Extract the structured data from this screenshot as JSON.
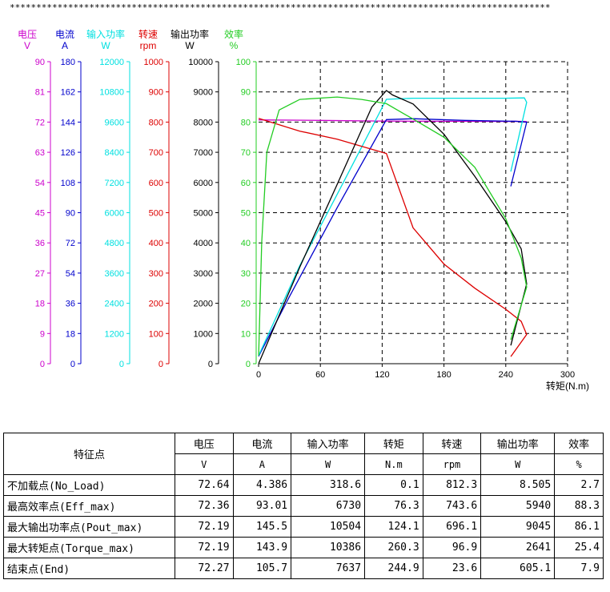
{
  "top_rule": "******************************************************************************************************",
  "chart_data": {
    "type": "line",
    "xlabel": "转矩(N.m)",
    "x_ticks": [
      "0",
      "60",
      "120",
      "180",
      "240",
      "300"
    ],
    "xlim": [
      0,
      300
    ],
    "grid": true,
    "axes": [
      {
        "name": "电压",
        "unit": "V",
        "color": "#cc00cc",
        "ticks": [
          "90",
          "81",
          "72",
          "63",
          "54",
          "45",
          "36",
          "27",
          "18",
          "9",
          "0"
        ],
        "max": 90
      },
      {
        "name": "电流",
        "unit": "A",
        "color": "#0000cc",
        "ticks": [
          "180",
          "162",
          "144",
          "126",
          "108",
          "90",
          "72",
          "54",
          "36",
          "18",
          "0"
        ],
        "max": 180
      },
      {
        "name": "输入功率",
        "unit": "W",
        "color": "#00e0e0",
        "ticks": [
          "12000",
          "10800",
          "9600",
          "8400",
          "7200",
          "6000",
          "4800",
          "3600",
          "2400",
          "1200",
          "0"
        ],
        "max": 12000
      },
      {
        "name": "转速",
        "unit": "rpm",
        "color": "#dd0000",
        "ticks": [
          "1000",
          "900",
          "800",
          "700",
          "600",
          "500",
          "400",
          "300",
          "200",
          "100",
          "0"
        ],
        "max": 1000
      },
      {
        "name": "输出功率",
        "unit": "W",
        "color": "#000000",
        "ticks": [
          "10000",
          "9000",
          "8000",
          "7000",
          "6000",
          "5000",
          "4000",
          "3000",
          "2000",
          "1000",
          "0"
        ],
        "max": 10000
      },
      {
        "name": "效率",
        "unit": "%",
        "color": "#22cc22",
        "ticks": [
          "100",
          "90",
          "80",
          "70",
          "60",
          "50",
          "40",
          "30",
          "20",
          "10",
          "0"
        ],
        "max": 100
      }
    ],
    "series": [
      {
        "axis": 0,
        "color": "#cc00cc",
        "x": [
          0,
          60,
          120,
          180,
          240,
          260.3,
          244.9
        ],
        "y": [
          72.64,
          72.5,
          72.3,
          72.25,
          72.2,
          72.19,
          72.27
        ]
      },
      {
        "axis": 1,
        "color": "#0000cc",
        "x": [
          0,
          30,
          76.3,
          124.1,
          150,
          200,
          250,
          260.3,
          244.9
        ],
        "y": [
          4.386,
          40,
          93.01,
          145.5,
          146,
          145,
          144.5,
          143.9,
          105.7
        ]
      },
      {
        "axis": 2,
        "color": "#00e0e0",
        "x": [
          0,
          40,
          76.3,
          124.1,
          150,
          200,
          240,
          258,
          260.3,
          244.9
        ],
        "y": [
          318.6,
          3900,
          6730,
          10504,
          10550,
          10550,
          10550,
          10560,
          10386,
          7637
        ]
      },
      {
        "axis": 3,
        "color": "#dd0000",
        "x": [
          0.1,
          40,
          76.3,
          100,
          124.1,
          150,
          180,
          210,
          240,
          255,
          260.3,
          244.9
        ],
        "y": [
          812.3,
          770,
          743.6,
          720,
          696.1,
          450,
          330,
          250,
          180,
          140,
          96.9,
          23.6
        ]
      },
      {
        "axis": 4,
        "color": "#000000",
        "x": [
          0.1,
          40,
          76.3,
          110,
          124.1,
          130,
          150,
          180,
          210,
          240,
          255,
          260.3,
          244.9
        ],
        "y": [
          8.505,
          3200,
          5940,
          8500,
          9045,
          8900,
          8600,
          7600,
          6200,
          4700,
          3800,
          2641,
          605.1
        ]
      },
      {
        "axis": 5,
        "color": "#22cc22",
        "x": [
          0.1,
          3,
          8,
          20,
          40,
          76.3,
          100,
          124.1,
          150,
          180,
          210,
          240,
          255,
          260.3,
          244.9
        ],
        "y": [
          2.7,
          40,
          70,
          84,
          87.5,
          88.3,
          87.5,
          86.1,
          81,
          75,
          65,
          48,
          35,
          25.4,
          7.9
        ]
      }
    ]
  },
  "table": {
    "header_feature": "特征点",
    "columns": [
      {
        "name": "电压",
        "unit": "V"
      },
      {
        "name": "电流",
        "unit": "A"
      },
      {
        "name": "输入功率",
        "unit": "W"
      },
      {
        "name": "转矩",
        "unit": "N.m"
      },
      {
        "name": "转速",
        "unit": "rpm"
      },
      {
        "name": "输出功率",
        "unit": "W"
      },
      {
        "name": "效率",
        "unit": "%"
      }
    ],
    "rows": [
      {
        "name": "不加载点(No_Load)",
        "values": [
          "72.64",
          "4.386",
          "318.6",
          "0.1",
          "812.3",
          "8.505",
          "2.7"
        ]
      },
      {
        "name": "最高效率点(Eff_max)",
        "values": [
          "72.36",
          "93.01",
          "6730",
          "76.3",
          "743.6",
          "5940",
          "88.3"
        ]
      },
      {
        "name": "最大输出功率点(Pout_max)",
        "values": [
          "72.19",
          "145.5",
          "10504",
          "124.1",
          "696.1",
          "9045",
          "86.1"
        ]
      },
      {
        "name": "最大转矩点(Torque_max)",
        "values": [
          "72.19",
          "143.9",
          "10386",
          "260.3",
          "96.9",
          "2641",
          "25.4"
        ]
      },
      {
        "name": "结束点(End)",
        "values": [
          "72.27",
          "105.7",
          "7637",
          "244.9",
          "23.6",
          "605.1",
          "7.9"
        ]
      }
    ]
  }
}
